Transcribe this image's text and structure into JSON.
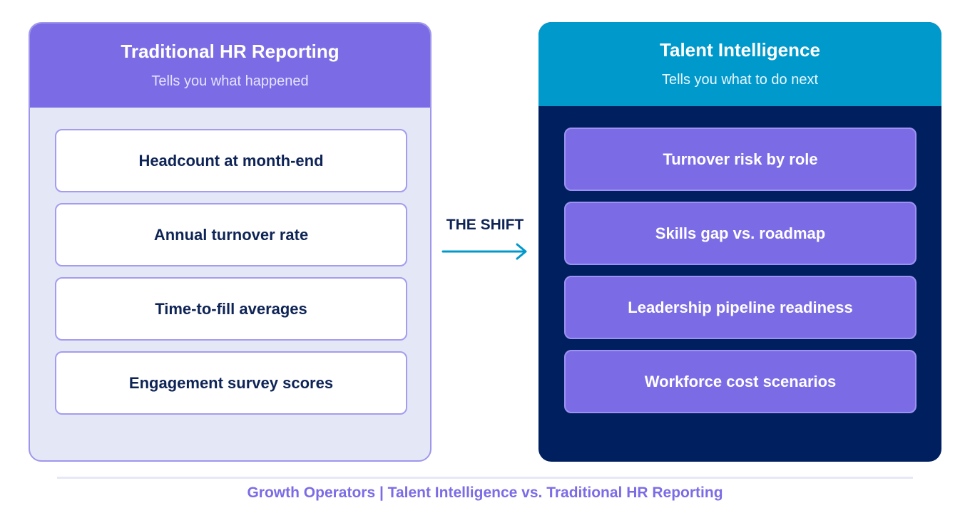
{
  "left_panel": {
    "title": "Traditional HR Reporting",
    "subtitle": "Tells you what happened",
    "items": [
      {
        "label": "Headcount at month-end"
      },
      {
        "label": "Annual turnover rate"
      },
      {
        "label": "Time-to-fill averages"
      },
      {
        "label": "Engagement survey scores"
      }
    ]
  },
  "right_panel": {
    "title": "Talent Intelligence",
    "subtitle": "Tells you what to do next",
    "items": [
      {
        "label": "Turnover risk by role"
      },
      {
        "label": "Skills gap vs. roadmap"
      },
      {
        "label": "Leadership pipeline readiness"
      },
      {
        "label": "Workforce cost scenarios"
      }
    ]
  },
  "connector": {
    "label": "THE SHIFT",
    "icon": "arrow-right-icon"
  },
  "footer": {
    "caption": "Growth Operators | Talent Intelligence vs. Traditional HR Reporting"
  },
  "colors": {
    "left_header": "#7b6ce6",
    "left_body": "#e3e7f6",
    "right_header": "#0099cc",
    "right_body": "#001f5e",
    "arrow": "#0099cc",
    "navy_text": "#0f2456"
  }
}
